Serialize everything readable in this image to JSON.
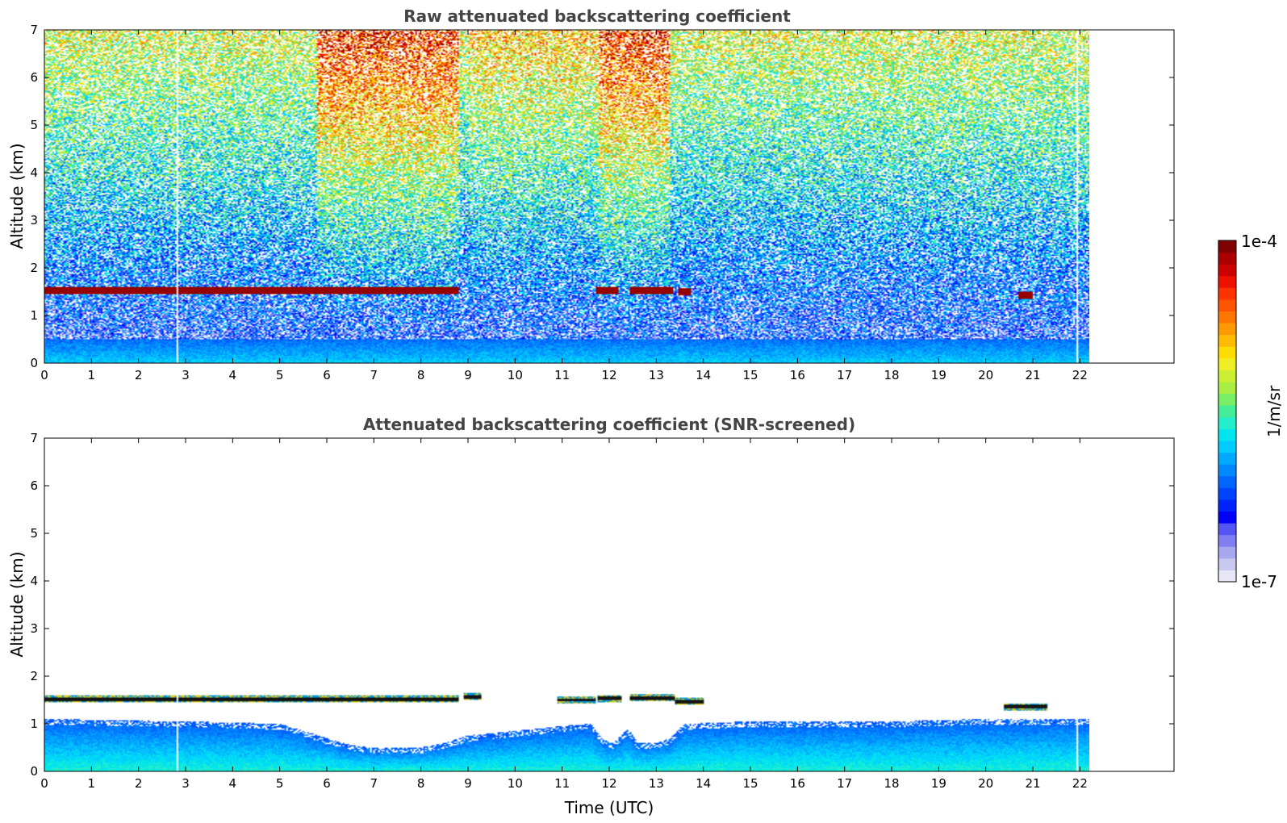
{
  "chart_data": [
    {
      "type": "heatmap",
      "title": "Raw attenuated backscattering coefficient",
      "xlabel": "",
      "ylabel": "Altitude (km)",
      "xlim": [
        0,
        24
      ],
      "ylim": [
        0,
        7
      ],
      "xticks": [
        0,
        1,
        2,
        3,
        4,
        5,
        6,
        7,
        8,
        9,
        10,
        11,
        12,
        13,
        14,
        15,
        16,
        17,
        18,
        19,
        20,
        21,
        22
      ],
      "yticks": [
        0,
        1,
        2,
        3,
        4,
        5,
        6,
        7
      ],
      "data_end_time": 22.2,
      "gaps": [
        2.83,
        21.95
      ],
      "cloud_layers": [
        {
          "start": 0.0,
          "end": 8.8,
          "altitude": 1.53
        },
        {
          "start": 11.7,
          "end": 12.2,
          "altitude": 1.53
        },
        {
          "start": 12.45,
          "end": 13.35,
          "altitude": 1.53
        },
        {
          "start": 13.45,
          "end": 13.75,
          "altitude": 1.49
        },
        {
          "start": 20.7,
          "end": 21.0,
          "altitude": 1.42
        }
      ]
    },
    {
      "type": "heatmap",
      "title": "Attenuated backscattering coefficient (SNR-screened)",
      "xlabel": "Time (UTC)",
      "ylabel": "Altitude (km)",
      "xlim": [
        0,
        24
      ],
      "ylim": [
        0,
        7
      ],
      "xticks": [
        0,
        1,
        2,
        3,
        4,
        5,
        6,
        7,
        8,
        9,
        10,
        11,
        12,
        13,
        14,
        15,
        16,
        17,
        18,
        19,
        20,
        21,
        22
      ],
      "yticks": [
        0,
        1,
        2,
        3,
        4,
        5,
        6,
        7
      ],
      "data_end_time": 22.2,
      "gaps": [
        2.83,
        21.95
      ],
      "cloud_layers": [
        {
          "start": 0.0,
          "end": 8.8,
          "altitude": 1.52
        },
        {
          "start": 8.9,
          "end": 9.3,
          "altitude": 1.57
        },
        {
          "start": 10.9,
          "end": 11.7,
          "altitude": 1.5
        },
        {
          "start": 11.75,
          "end": 12.25,
          "altitude": 1.53
        },
        {
          "start": 12.45,
          "end": 13.4,
          "altitude": 1.54
        },
        {
          "start": 13.4,
          "end": 14.0,
          "altitude": 1.47
        },
        {
          "start": 20.4,
          "end": 21.3,
          "altitude": 1.36
        }
      ],
      "boundary_layer_top": [
        [
          0,
          1.1
        ],
        [
          3,
          1.05
        ],
        [
          5,
          1.0
        ],
        [
          6,
          0.7
        ],
        [
          6.5,
          0.55
        ],
        [
          7,
          0.5
        ],
        [
          7.5,
          0.5
        ],
        [
          8,
          0.5
        ],
        [
          8.5,
          0.6
        ],
        [
          9,
          0.75
        ],
        [
          10,
          0.85
        ],
        [
          11,
          0.95
        ],
        [
          11.6,
          1.0
        ],
        [
          11.9,
          0.65
        ],
        [
          12.1,
          0.6
        ],
        [
          12.4,
          0.9
        ],
        [
          12.6,
          0.6
        ],
        [
          13,
          0.6
        ],
        [
          13.3,
          0.7
        ],
        [
          13.6,
          1.0
        ],
        [
          15,
          1.05
        ],
        [
          18,
          1.05
        ],
        [
          20,
          1.1
        ],
        [
          22.2,
          1.1
        ]
      ]
    }
  ],
  "colorbar": {
    "label": "1/m/sr",
    "max_label": "1e-4",
    "min_label": "1e-7",
    "colors": [
      "#e6e6f5",
      "#c8c8f0",
      "#a8a8ee",
      "#8080f2",
      "#5555f5",
      "#0000ff",
      "#0022ff",
      "#0044ff",
      "#0066ff",
      "#0088ff",
      "#00aaff",
      "#00ccff",
      "#00e5ee",
      "#22eecc",
      "#44ee99",
      "#77ee66",
      "#aaee44",
      "#ccee33",
      "#eeee22",
      "#ffdd00",
      "#ffbb00",
      "#ff9900",
      "#ff7700",
      "#ff5500",
      "#ff3300",
      "#ee1100",
      "#cc0000",
      "#aa0000",
      "#800000"
    ]
  }
}
